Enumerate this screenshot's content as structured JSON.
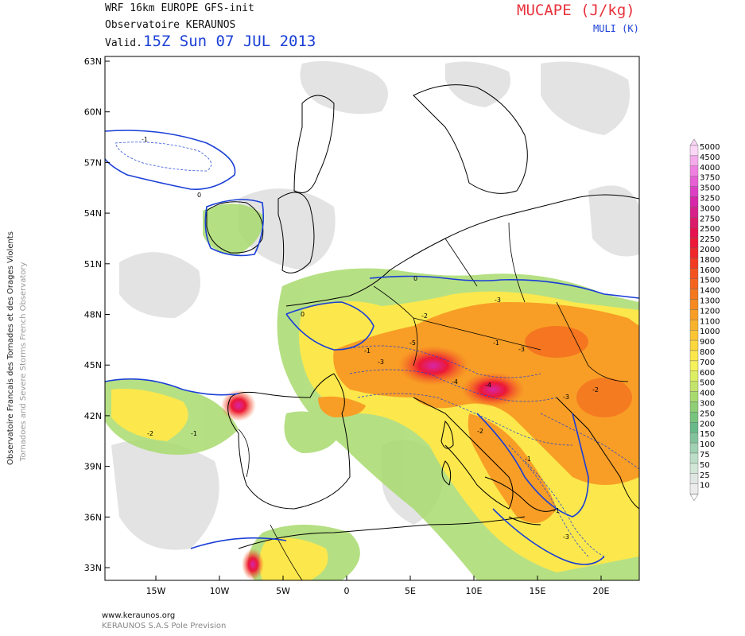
{
  "header": {
    "model": "WRF 16km EUROPE  GFS-init",
    "org": "Observatoire KERAUNOS",
    "valid_label": "Valid.",
    "valid_time": "15Z Sun 07 JUL 2013",
    "variable": "MUCAPE (J/kg)",
    "sub_variable": "MULI (K)"
  },
  "side": {
    "org_fr": "Observatoire Francais des Tornades et des Orages Violents",
    "org_en": "Tornadoes and Severe Storms French Observatory"
  },
  "footer": {
    "url": "www.keraunos.org",
    "company": "KERAUNOS S.A.S Pole Prevision"
  },
  "axes": {
    "lat_labels": [
      "63N",
      "60N",
      "57N",
      "54N",
      "51N",
      "48N",
      "45N",
      "42N",
      "39N",
      "36N",
      "33N"
    ],
    "lon_labels": [
      "15W",
      "10W",
      "5W",
      "0",
      "5E",
      "10E",
      "15E",
      "20E"
    ]
  },
  "legend": {
    "levels": [
      "5000",
      "4500",
      "4000",
      "3750",
      "3500",
      "3250",
      "3000",
      "2750",
      "2500",
      "2250",
      "2000",
      "1800",
      "1600",
      "1500",
      "1400",
      "1300",
      "1200",
      "1100",
      "1000",
      "900",
      "800",
      "700",
      "600",
      "500",
      "400",
      "300",
      "250",
      "200",
      "150",
      "100",
      "75",
      "50",
      "25",
      "10"
    ],
    "colors": [
      "#fbd6f6",
      "#f5aaea",
      "#ef7fe0",
      "#e65fd4",
      "#dd3fc4",
      "#d726a8",
      "#d8208a",
      "#dc1a6c",
      "#e4124e",
      "#ec1836",
      "#f0262a",
      "#f23a22",
      "#f4521e",
      "#f4641e",
      "#f4761e",
      "#f68a20",
      "#f89e26",
      "#f9b22c",
      "#fbc534",
      "#fcd73e",
      "#fce84c",
      "#f4f15a",
      "#dcee62",
      "#c3e46a",
      "#a9da6e",
      "#8fce74",
      "#78c47e",
      "#69b98a",
      "#82c39b",
      "#a0d1b2",
      "#bcdec8",
      "#d2e6d8",
      "#e0e6e2",
      "#ececec"
    ]
  },
  "map": {
    "contour_labels": [
      "-1",
      "0",
      "-2",
      "-3",
      "-4",
      "-5",
      "-1",
      "0",
      "-2",
      "-3",
      "-1",
      "-4",
      "-3",
      "-2",
      "-1",
      "-3",
      "-1",
      "-2",
      "-3",
      "-1",
      "0"
    ]
  }
}
